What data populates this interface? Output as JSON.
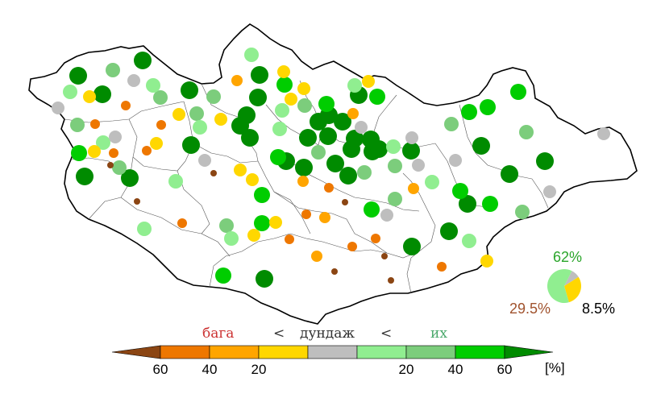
{
  "colors": {
    "dry_strong": "#8B4513",
    "dry_60": "#EE7700",
    "dry_40": "#FFA500",
    "dry_20": "#FFD700",
    "normal": "#BEBEBE",
    "wet_20": "#90EE90",
    "wet_40": "#7CCD7C",
    "wet_60": "#00CD00",
    "wet_strong": "#008B00",
    "border": "#000000",
    "province": "#666666"
  },
  "legend": {
    "low": "бага",
    "sep1": "<",
    "mid": "дундаж",
    "sep2": "<",
    "high": "их",
    "ticks_left": [
      "60",
      "40",
      "20"
    ],
    "ticks_right": [
      "20",
      "40",
      "60"
    ],
    "unit": "[%]"
  },
  "summary": {
    "wet_pct": "62%",
    "dry_pct": "29.5%",
    "normal_pct": "8.5%",
    "wet_share": 0.62,
    "dry_share": 0.295,
    "normal_share": 0.085
  }
}
